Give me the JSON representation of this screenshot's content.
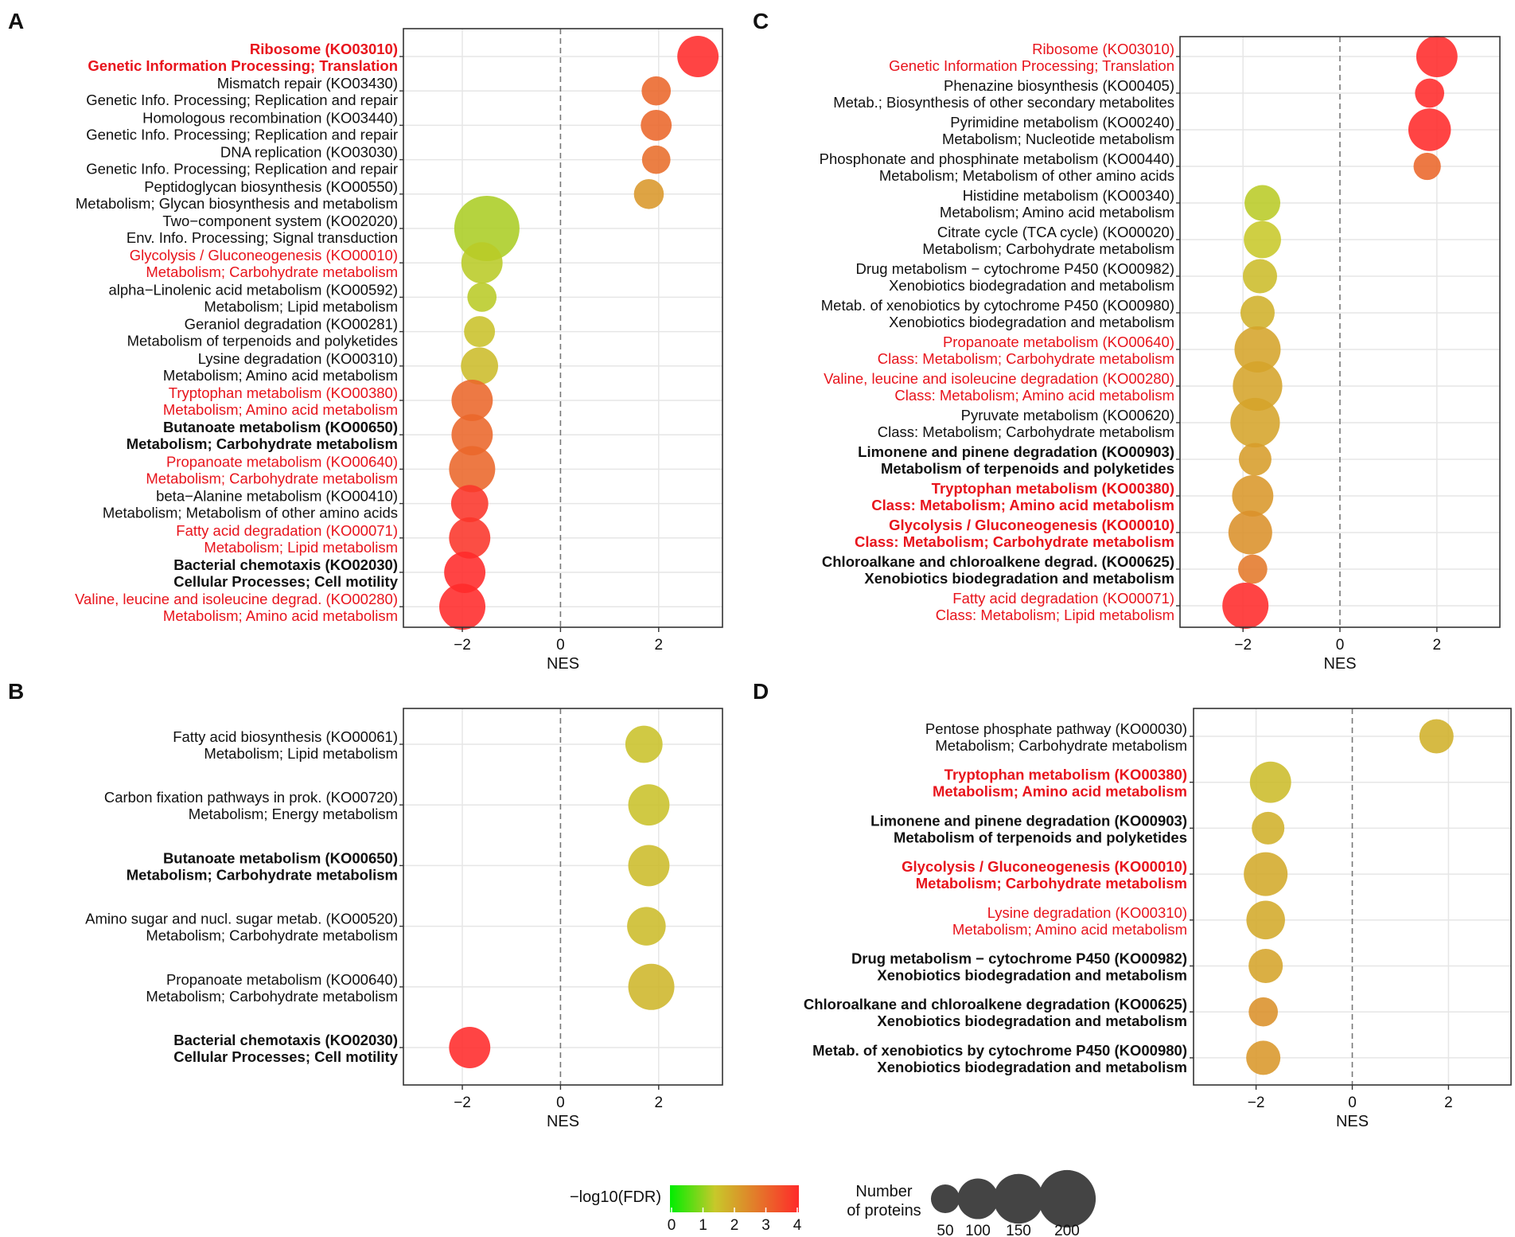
{
  "chart_data": [
    {
      "panel": "A",
      "type": "scatter",
      "xlabel": "NES",
      "xlim": [
        -3.2,
        3.3
      ],
      "xticks": [
        -2,
        0,
        2
      ],
      "tick_labels": [
        "−2",
        "0",
        "2"
      ],
      "reference_line": 0,
      "rows": [
        {
          "line1": "Ribosome (KO03010)",
          "line2": "Genetic Information Processing; Translation",
          "style": "red-bold",
          "nes": 2.8,
          "fdr": 4.0,
          "proteins": 80
        },
        {
          "line1": "Mismatch repair (KO03430)",
          "line2": "Genetic Info. Processing; Replication and repair",
          "style": "plain",
          "nes": 1.95,
          "fdr": 3.0,
          "proteins": 40
        },
        {
          "line1": "Homologous recombination (KO03440)",
          "line2": "Genetic Info. Processing; Replication and repair",
          "style": "plain",
          "nes": 1.95,
          "fdr": 3.0,
          "proteins": 45
        },
        {
          "line1": "DNA replication (KO03030)",
          "line2": "Genetic Info. Processing; Replication and repair",
          "style": "plain",
          "nes": 1.95,
          "fdr": 2.9,
          "proteins": 38
        },
        {
          "line1": "Peptidoglycan biosynthesis (KO00550)",
          "line2": "Metabolism; Glycan biosynthesis and metabolism",
          "style": "plain",
          "nes": 1.8,
          "fdr": 2.2,
          "proteins": 42
        },
        {
          "line1": "Two−component system (KO02020)",
          "line2": "Env. Info. Processing; Signal transduction",
          "style": "plain",
          "nes": -1.5,
          "fdr": 1.2,
          "proteins": 200
        },
        {
          "line1": "Glycolysis / Gluconeogenesis (KO00010)",
          "line2": "Metabolism; Carbohydrate metabolism",
          "style": "red",
          "nes": -1.6,
          "fdr": 1.3,
          "proteins": 80
        },
        {
          "line1": "alpha−Linolenic acid metabolism (KO00592)",
          "line2": "Metabolism; Lipid metabolism",
          "style": "plain",
          "nes": -1.6,
          "fdr": 1.3,
          "proteins": 40
        },
        {
          "line1": "Geraniol degradation (KO00281)",
          "line2": "Metabolism of terpenoids and polyketides",
          "style": "plain",
          "nes": -1.65,
          "fdr": 1.5,
          "proteins": 45
        },
        {
          "line1": "Lysine degradation (KO00310)",
          "line2": "Metabolism; Amino acid metabolism",
          "style": "plain",
          "nes": -1.65,
          "fdr": 1.6,
          "proteins": 65
        },
        {
          "line1": "Tryptophan metabolism (KO00380)",
          "line2": "Metabolism; Amino acid metabolism",
          "style": "red",
          "nes": -1.8,
          "fdr": 3.0,
          "proteins": 80
        },
        {
          "line1": "Butanoate metabolism (KO00650)",
          "line2": "Metabolism; Carbohydrate metabolism",
          "style": "bold",
          "nes": -1.8,
          "fdr": 3.0,
          "proteins": 80
        },
        {
          "line1": "Propanoate metabolism (KO00640)",
          "line2": "Metabolism; Carbohydrate metabolism",
          "style": "red",
          "nes": -1.8,
          "fdr": 3.0,
          "proteins": 100
        },
        {
          "line1": "beta−Alanine metabolism (KO00410)",
          "line2": "Metabolism; Metabolism of other amino acids",
          "style": "plain",
          "nes": -1.85,
          "fdr": 3.8,
          "proteins": 65
        },
        {
          "line1": "Fatty acid degradation (KO00071)",
          "line2": "Metabolism; Lipid metabolism",
          "style": "red",
          "nes": -1.85,
          "fdr": 3.8,
          "proteins": 80
        },
        {
          "line1": "Bacterial chemotaxis (KO02030)",
          "line2": "Cellular Processes; Cell motility",
          "style": "bold",
          "nes": -1.95,
          "fdr": 4.0,
          "proteins": 80
        },
        {
          "line1": "Valine, leucine and isoleucine degrad. (KO00280)",
          "line2": "Metabolism; Amino acid metabolism",
          "style": "red",
          "nes": -2.0,
          "fdr": 4.0,
          "proteins": 100
        }
      ]
    },
    {
      "panel": "B",
      "type": "scatter",
      "xlabel": "NES",
      "xlim": [
        -3.2,
        3.3
      ],
      "xticks": [
        -2,
        0,
        2
      ],
      "tick_labels": [
        "−2",
        "0",
        "2"
      ],
      "reference_line": 0,
      "rows": [
        {
          "line1": "Fatty acid biosynthesis (KO00061)",
          "line2": "Metabolism; Lipid metabolism",
          "style": "plain",
          "nes": 1.7,
          "fdr": 1.5,
          "proteins": 65
        },
        {
          "line1": "Carbon fixation pathways in prok. (KO00720)",
          "line2": "Metabolism; Energy metabolism",
          "style": "plain",
          "nes": 1.8,
          "fdr": 1.5,
          "proteins": 80
        },
        {
          "line1": "Butanoate metabolism (KO00650)",
          "line2": "Metabolism; Carbohydrate metabolism",
          "style": "bold",
          "nes": 1.8,
          "fdr": 1.6,
          "proteins": 80
        },
        {
          "line1": "Amino sugar and nucl. sugar metab. (KO00520)",
          "line2": "Metabolism; Carbohydrate metabolism",
          "style": "plain",
          "nes": 1.75,
          "fdr": 1.6,
          "proteins": 70
        },
        {
          "line1": "Propanoate metabolism (KO00640)",
          "line2": "Metabolism; Carbohydrate metabolism",
          "style": "plain",
          "nes": 1.85,
          "fdr": 1.7,
          "proteins": 100
        },
        {
          "line1": "Bacterial chemotaxis (KO02030)",
          "line2": "Cellular Processes; Cell motility",
          "style": "bold",
          "nes": -1.85,
          "fdr": 4.0,
          "proteins": 80
        }
      ]
    },
    {
      "panel": "C",
      "type": "scatter",
      "xlabel": "NES",
      "xlim": [
        -3.3,
        3.3
      ],
      "xticks": [
        -2,
        0,
        2
      ],
      "tick_labels": [
        "−2",
        "0",
        "2"
      ],
      "reference_line": 0,
      "rows": [
        {
          "line1": "Ribosome (KO03010)",
          "line2": "Genetic Information Processing; Translation",
          "style": "red",
          "nes": 2.0,
          "fdr": 4.0,
          "proteins": 80
        },
        {
          "line1": "Phenazine biosynthesis (KO00405)",
          "line2": "Metab.; Biosynthesis of other secondary metabolites",
          "style": "plain",
          "nes": 1.85,
          "fdr": 4.0,
          "proteins": 40
        },
        {
          "line1": "Pyrimidine metabolism (KO00240)",
          "line2": "Metabolism; Nucleotide metabolism",
          "style": "plain",
          "nes": 1.85,
          "fdr": 4.0,
          "proteins": 85
        },
        {
          "line1": "Phosphonate and phosphinate metabolism (KO00440)",
          "line2": "Metabolism; Metabolism of other amino acids",
          "style": "plain",
          "nes": 1.8,
          "fdr": 3.0,
          "proteins": 35
        },
        {
          "line1": "Histidine metabolism (KO00340)",
          "line2": "Metabolism; Amino acid metabolism",
          "style": "plain",
          "nes": -1.6,
          "fdr": 1.3,
          "proteins": 60
        },
        {
          "line1": "Citrate cycle (TCA cycle) (KO00020)",
          "line2": "Metabolism; Carbohydrate metabolism",
          "style": "plain",
          "nes": -1.6,
          "fdr": 1.4,
          "proteins": 65
        },
        {
          "line1": "Drug metabolism − cytochrome P450 (KO00982)",
          "line2": "Xenobiotics biodegradation and metabolism",
          "style": "plain",
          "nes": -1.65,
          "fdr": 1.6,
          "proteins": 55
        },
        {
          "line1": "Metab. of xenobiotics by cytochrome P450 (KO00980)",
          "line2": "Xenobiotics biodegradation and metabolism",
          "style": "plain",
          "nes": -1.7,
          "fdr": 1.8,
          "proteins": 55
        },
        {
          "line1": "Propanoate metabolism (KO00640)",
          "line2": "Class: Metabolism; Carbohydrate metabolism",
          "style": "red",
          "nes": -1.7,
          "fdr": 2.0,
          "proteins": 100
        },
        {
          "line1": "Valine, leucine and isoleucine degradation (KO00280)",
          "line2": "Class: Metabolism; Amino acid metabolism",
          "style": "red",
          "nes": -1.7,
          "fdr": 2.0,
          "proteins": 115
        },
        {
          "line1": "Pyruvate metabolism (KO00620)",
          "line2": "Class: Metabolism; Carbohydrate metabolism",
          "style": "plain",
          "nes": -1.75,
          "fdr": 2.0,
          "proteins": 115
        },
        {
          "line1": "Limonene and pinene degradation (KO00903)",
          "line2": "Metabolism of terpenoids and polyketides",
          "style": "bold",
          "nes": -1.75,
          "fdr": 2.1,
          "proteins": 50
        },
        {
          "line1": "Tryptophan metabolism (KO00380)",
          "line2": "Class: Metabolism; Amino acid metabolism",
          "style": "red-bold",
          "nes": -1.8,
          "fdr": 2.2,
          "proteins": 80
        },
        {
          "line1": "Glycolysis / Gluconeogenesis (KO00010)",
          "line2": "Class: Metabolism; Carbohydrate metabolism",
          "style": "red-bold",
          "nes": -1.85,
          "fdr": 2.3,
          "proteins": 90
        },
        {
          "line1": "Chloroalkane and chloroalkene degrad. (KO00625)",
          "line2": "Xenobiotics biodegradation and metabolism",
          "style": "bold",
          "nes": -1.8,
          "fdr": 2.7,
          "proteins": 40
        },
        {
          "line1": "Fatty acid degradation (KO00071)",
          "line2": "Class: Metabolism; Lipid metabolism",
          "style": "red",
          "nes": -1.95,
          "fdr": 4.0,
          "proteins": 100
        }
      ]
    },
    {
      "panel": "D",
      "type": "scatter",
      "xlabel": "NES",
      "xlim": [
        -3.3,
        3.3
      ],
      "xticks": [
        -2,
        0,
        2
      ],
      "tick_labels": [
        "−2",
        "0",
        "2"
      ],
      "reference_line": 0,
      "rows": [
        {
          "line1": "Pentose phosphate pathway (KO00030)",
          "line2": "Metabolism; Carbohydrate metabolism",
          "style": "plain",
          "nes": 1.75,
          "fdr": 1.8,
          "proteins": 55
        },
        {
          "line1": "Tryptophan metabolism (KO00380)",
          "line2": "Metabolism; Amino acid metabolism",
          "style": "red-bold",
          "nes": -1.7,
          "fdr": 1.6,
          "proteins": 80
        },
        {
          "line1": "Limonene and pinene degradation (KO00903)",
          "line2": "Metabolism of terpenoids and polyketides",
          "style": "bold",
          "nes": -1.75,
          "fdr": 1.8,
          "proteins": 50
        },
        {
          "line1": "Glycolysis / Gluconeogenesis (KO00010)",
          "line2": "Metabolism; Carbohydrate metabolism",
          "style": "red-bold",
          "nes": -1.8,
          "fdr": 1.9,
          "proteins": 90
        },
        {
          "line1": "Lysine degradation (KO00310)",
          "line2": "Metabolism; Amino acid metabolism",
          "style": "red",
          "nes": -1.8,
          "fdr": 1.9,
          "proteins": 70
        },
        {
          "line1": "Drug metabolism − cytochrome P450 (KO00982)",
          "line2": "Xenobiotics biodegradation and metabolism",
          "style": "bold",
          "nes": -1.8,
          "fdr": 2.0,
          "proteins": 55
        },
        {
          "line1": "Chloroalkane and chloroalkene degradation (KO00625)",
          "line2": "Xenobiotics biodegradation and metabolism",
          "style": "bold",
          "nes": -1.85,
          "fdr": 2.3,
          "proteins": 40
        },
        {
          "line1": "Metab. of xenobiotics by cytochrome P450 (KO00980)",
          "line2": "Xenobiotics biodegradation and metabolism",
          "style": "bold",
          "nes": -1.85,
          "fdr": 2.2,
          "proteins": 55
        }
      ]
    }
  ],
  "legend": {
    "color_title": "−log10(FDR)",
    "color_ticks": [
      "0",
      "1",
      "2",
      "3",
      "4"
    ],
    "color_low": "#00ee00",
    "color_mid": "#c8c82a",
    "color_high": "#ff2a2a",
    "size_title_line1": "Number",
    "size_title_line2": "of proteins",
    "sizes": [
      50,
      100,
      150,
      200
    ],
    "size_labels": [
      "50",
      "100",
      "150",
      "200"
    ],
    "size_color": "#444444"
  },
  "colors": {
    "label_red": "#e8141c",
    "label_black": "#111111",
    "grid": "#e6e6e6",
    "frame": "#333333",
    "zero_line": "#777777"
  }
}
